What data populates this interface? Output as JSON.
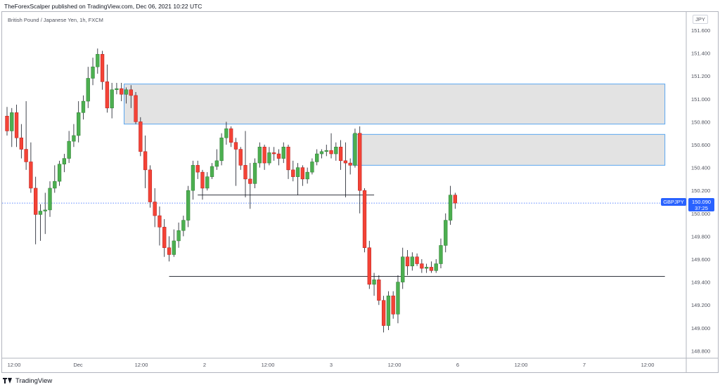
{
  "header": {
    "publisher_line": "TheForexScalper published on TradingView.com, Dec 06, 2021 10:22 UTC",
    "symbol_description": "British Pound / Japanese Yen, 1h, FXCM"
  },
  "price_scale": {
    "currency": "JPY",
    "ticks": [
      "151.600",
      "151.400",
      "151.200",
      "151.000",
      "150.800",
      "150.600",
      "150.400",
      "150.200",
      "150.000",
      "149.800",
      "149.600",
      "149.400",
      "149.200",
      "149.000",
      "148.800"
    ]
  },
  "time_scale": {
    "ticks": [
      "12:00",
      "Dec",
      "12:00",
      "2",
      "12:00",
      "3",
      "12:00",
      "6",
      "12:00",
      "7",
      "12:00"
    ]
  },
  "last_price": {
    "symbol": "GBPJPY",
    "price": "150.090",
    "countdown": "37:25"
  },
  "footer": {
    "brand": "TradingView"
  },
  "colors": {
    "up": "#4caf50",
    "down": "#f44336",
    "zone_fill": "#e3e3e3",
    "zone_border": "#5aa6f0",
    "accent": "#2962ff"
  },
  "chart_data": {
    "type": "candlestick",
    "symbol": "GBPJPY",
    "timeframe": "1h",
    "ylim": [
      148.75,
      151.72
    ],
    "candles": [
      {
        "o": 150.85,
        "h": 150.93,
        "l": 150.68,
        "c": 150.72
      },
      {
        "o": 150.72,
        "h": 150.92,
        "l": 150.58,
        "c": 150.88
      },
      {
        "o": 150.88,
        "h": 150.95,
        "l": 150.58,
        "c": 150.66
      },
      {
        "o": 150.66,
        "h": 150.78,
        "l": 150.48,
        "c": 150.56
      },
      {
        "o": 150.56,
        "h": 150.98,
        "l": 150.38,
        "c": 150.45
      },
      {
        "o": 150.45,
        "h": 150.62,
        "l": 150.18,
        "c": 150.22
      },
      {
        "o": 150.22,
        "h": 150.32,
        "l": 149.73,
        "c": 149.99
      },
      {
        "o": 149.99,
        "h": 150.08,
        "l": 149.76,
        "c": 150.02
      },
      {
        "o": 150.02,
        "h": 150.18,
        "l": 149.82,
        "c": 150.03
      },
      {
        "o": 150.03,
        "h": 150.28,
        "l": 149.97,
        "c": 150.22
      },
      {
        "o": 150.22,
        "h": 150.42,
        "l": 150.18,
        "c": 150.28
      },
      {
        "o": 150.28,
        "h": 150.46,
        "l": 150.24,
        "c": 150.43
      },
      {
        "o": 150.43,
        "h": 150.52,
        "l": 150.36,
        "c": 150.48
      },
      {
        "o": 150.48,
        "h": 150.72,
        "l": 150.44,
        "c": 150.63
      },
      {
        "o": 150.63,
        "h": 150.78,
        "l": 150.58,
        "c": 150.68
      },
      {
        "o": 150.68,
        "h": 150.98,
        "l": 150.62,
        "c": 150.88
      },
      {
        "o": 150.88,
        "h": 151.03,
        "l": 150.82,
        "c": 150.98
      },
      {
        "o": 150.98,
        "h": 151.28,
        "l": 150.92,
        "c": 151.18
      },
      {
        "o": 151.18,
        "h": 151.36,
        "l": 151.12,
        "c": 151.28
      },
      {
        "o": 151.28,
        "h": 151.44,
        "l": 151.22,
        "c": 151.39
      },
      {
        "o": 151.39,
        "h": 151.42,
        "l": 151.08,
        "c": 151.15
      },
      {
        "o": 151.15,
        "h": 151.3,
        "l": 150.88,
        "c": 150.92
      },
      {
        "o": 150.92,
        "h": 151.14,
        "l": 150.83,
        "c": 151.08
      },
      {
        "o": 151.08,
        "h": 151.14,
        "l": 151.04,
        "c": 151.09
      },
      {
        "o": 151.09,
        "h": 151.14,
        "l": 150.98,
        "c": 151.04
      },
      {
        "o": 151.04,
        "h": 151.1,
        "l": 150.96,
        "c": 151.08
      },
      {
        "o": 151.08,
        "h": 151.12,
        "l": 150.92,
        "c": 151.03
      },
      {
        "o": 151.03,
        "h": 151.06,
        "l": 150.78,
        "c": 150.8
      },
      {
        "o": 150.8,
        "h": 150.84,
        "l": 150.5,
        "c": 150.54
      },
      {
        "o": 150.54,
        "h": 150.68,
        "l": 150.22,
        "c": 150.38
      },
      {
        "o": 150.38,
        "h": 150.42,
        "l": 150.05,
        "c": 150.1
      },
      {
        "o": 150.1,
        "h": 150.22,
        "l": 149.88,
        "c": 149.98
      },
      {
        "o": 149.98,
        "h": 150.06,
        "l": 149.72,
        "c": 149.88
      },
      {
        "o": 149.88,
        "h": 149.95,
        "l": 149.62,
        "c": 149.7
      },
      {
        "o": 149.7,
        "h": 149.8,
        "l": 149.58,
        "c": 149.64
      },
      {
        "o": 149.64,
        "h": 149.86,
        "l": 149.62,
        "c": 149.76
      },
      {
        "o": 149.76,
        "h": 149.92,
        "l": 149.7,
        "c": 149.85
      },
      {
        "o": 149.85,
        "h": 149.98,
        "l": 149.8,
        "c": 149.94
      },
      {
        "o": 149.94,
        "h": 150.24,
        "l": 149.88,
        "c": 150.2
      },
      {
        "o": 150.2,
        "h": 150.46,
        "l": 150.12,
        "c": 150.42
      },
      {
        "o": 150.42,
        "h": 150.46,
        "l": 150.3,
        "c": 150.36
      },
      {
        "o": 150.36,
        "h": 150.38,
        "l": 150.12,
        "c": 150.22
      },
      {
        "o": 150.22,
        "h": 150.36,
        "l": 150.2,
        "c": 150.32
      },
      {
        "o": 150.32,
        "h": 150.44,
        "l": 150.3,
        "c": 150.41
      },
      {
        "o": 150.41,
        "h": 150.56,
        "l": 150.38,
        "c": 150.46
      },
      {
        "o": 150.46,
        "h": 150.7,
        "l": 150.42,
        "c": 150.66
      },
      {
        "o": 150.66,
        "h": 150.8,
        "l": 150.6,
        "c": 150.74
      },
      {
        "o": 150.74,
        "h": 150.76,
        "l": 150.58,
        "c": 150.62
      },
      {
        "o": 150.62,
        "h": 150.66,
        "l": 150.24,
        "c": 150.56
      },
      {
        "o": 150.56,
        "h": 150.58,
        "l": 150.38,
        "c": 150.42
      },
      {
        "o": 150.42,
        "h": 150.72,
        "l": 150.14,
        "c": 150.3
      },
      {
        "o": 150.3,
        "h": 150.44,
        "l": 150.04,
        "c": 150.26
      },
      {
        "o": 150.26,
        "h": 150.48,
        "l": 150.22,
        "c": 150.44
      },
      {
        "o": 150.44,
        "h": 150.62,
        "l": 150.4,
        "c": 150.58
      },
      {
        "o": 150.58,
        "h": 150.6,
        "l": 150.38,
        "c": 150.44
      },
      {
        "o": 150.44,
        "h": 150.58,
        "l": 150.42,
        "c": 150.53
      },
      {
        "o": 150.53,
        "h": 150.58,
        "l": 150.46,
        "c": 150.52
      },
      {
        "o": 150.52,
        "h": 150.56,
        "l": 150.42,
        "c": 150.48
      },
      {
        "o": 150.48,
        "h": 150.62,
        "l": 150.44,
        "c": 150.58
      },
      {
        "o": 150.58,
        "h": 150.6,
        "l": 150.3,
        "c": 150.38
      },
      {
        "o": 150.38,
        "h": 150.46,
        "l": 150.28,
        "c": 150.32
      },
      {
        "o": 150.32,
        "h": 150.44,
        "l": 150.16,
        "c": 150.4
      },
      {
        "o": 150.4,
        "h": 150.42,
        "l": 150.24,
        "c": 150.3
      },
      {
        "o": 150.3,
        "h": 150.4,
        "l": 150.26,
        "c": 150.36
      },
      {
        "o": 150.36,
        "h": 150.48,
        "l": 150.34,
        "c": 150.45
      },
      {
        "o": 150.45,
        "h": 150.56,
        "l": 150.42,
        "c": 150.52
      },
      {
        "o": 150.52,
        "h": 150.56,
        "l": 150.48,
        "c": 150.54
      },
      {
        "o": 150.54,
        "h": 150.6,
        "l": 150.5,
        "c": 150.55
      },
      {
        "o": 150.55,
        "h": 150.7,
        "l": 150.48,
        "c": 150.52
      },
      {
        "o": 150.52,
        "h": 150.62,
        "l": 150.46,
        "c": 150.58
      },
      {
        "o": 150.58,
        "h": 150.64,
        "l": 150.38,
        "c": 150.46
      },
      {
        "o": 150.46,
        "h": 150.62,
        "l": 150.14,
        "c": 150.44
      },
      {
        "o": 150.44,
        "h": 150.48,
        "l": 150.34,
        "c": 150.42
      },
      {
        "o": 150.42,
        "h": 150.74,
        "l": 150.4,
        "c": 150.7
      },
      {
        "o": 150.7,
        "h": 150.76,
        "l": 150.0,
        "c": 150.2
      },
      {
        "o": 150.2,
        "h": 150.22,
        "l": 149.66,
        "c": 149.7
      },
      {
        "o": 149.7,
        "h": 149.76,
        "l": 149.34,
        "c": 149.38
      },
      {
        "o": 149.38,
        "h": 149.48,
        "l": 149.28,
        "c": 149.42
      },
      {
        "o": 149.42,
        "h": 149.46,
        "l": 149.2,
        "c": 149.24
      },
      {
        "o": 149.24,
        "h": 149.28,
        "l": 148.96,
        "c": 149.02
      },
      {
        "o": 149.02,
        "h": 149.32,
        "l": 148.98,
        "c": 149.28
      },
      {
        "o": 149.28,
        "h": 149.32,
        "l": 149.08,
        "c": 149.12
      },
      {
        "o": 149.12,
        "h": 149.46,
        "l": 149.04,
        "c": 149.4
      },
      {
        "o": 149.4,
        "h": 149.7,
        "l": 149.34,
        "c": 149.62
      },
      {
        "o": 149.62,
        "h": 149.68,
        "l": 149.46,
        "c": 149.54
      },
      {
        "o": 149.54,
        "h": 149.66,
        "l": 149.5,
        "c": 149.62
      },
      {
        "o": 149.62,
        "h": 149.65,
        "l": 149.54,
        "c": 149.56
      },
      {
        "o": 149.56,
        "h": 149.6,
        "l": 149.48,
        "c": 149.52
      },
      {
        "o": 149.52,
        "h": 149.56,
        "l": 149.48,
        "c": 149.53
      },
      {
        "o": 149.53,
        "h": 149.58,
        "l": 149.48,
        "c": 149.5
      },
      {
        "o": 149.5,
        "h": 149.6,
        "l": 149.48,
        "c": 149.56
      },
      {
        "o": 149.56,
        "h": 149.78,
        "l": 149.52,
        "c": 149.72
      },
      {
        "o": 149.72,
        "h": 150.0,
        "l": 149.66,
        "c": 149.94
      },
      {
        "o": 149.94,
        "h": 150.24,
        "l": 149.9,
        "c": 150.16
      },
      {
        "o": 150.16,
        "h": 150.18,
        "l": 150.04,
        "c": 150.09
      }
    ],
    "zones": [
      {
        "top": 151.13,
        "bottom": 150.78,
        "start_bar": 25,
        "end_bar": 138
      },
      {
        "top": 150.69,
        "bottom": 150.42,
        "start_bar": 73,
        "end_bar": 138
      }
    ],
    "hlines": [
      {
        "price": 150.16,
        "start_bar": 40,
        "end_bar": 77
      },
      {
        "price": 149.45,
        "start_bar": 34,
        "end_bar": 138
      }
    ],
    "last_price_line": 150.09
  }
}
